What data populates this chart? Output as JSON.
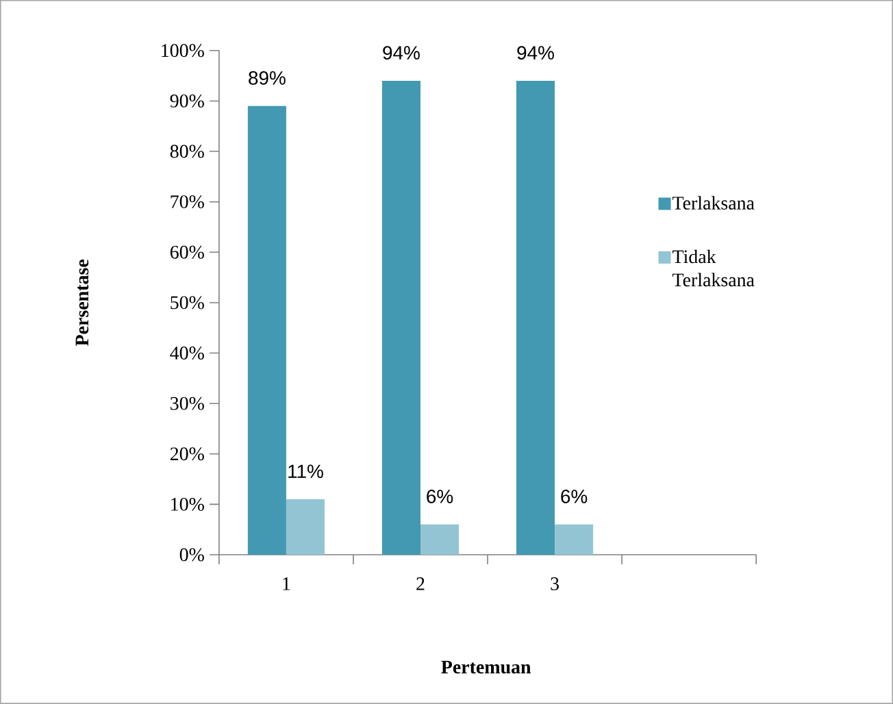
{
  "chart_data": {
    "type": "bar",
    "xlabel": "Pertemuan",
    "ylabel": "Persentase",
    "categories": [
      "1",
      "2",
      "3",
      null
    ],
    "series": [
      {
        "name": "Terlaksana",
        "color": "#4399b1",
        "values": [
          89,
          94,
          94,
          null
        ],
        "value_labels": [
          "89%",
          "94%",
          "94%",
          null
        ]
      },
      {
        "name": "Tidak Terlaksana",
        "color": "#93c4d4",
        "values": [
          11,
          6,
          6,
          null
        ],
        "value_labels": [
          "11%",
          "6%",
          "6%",
          null
        ]
      }
    ],
    "ylim": [
      0,
      100
    ],
    "yticks": [
      {
        "value": 0,
        "label": "0%"
      },
      {
        "value": 10,
        "label": "10%"
      },
      {
        "value": 20,
        "label": "20%"
      },
      {
        "value": 30,
        "label": "30%"
      },
      {
        "value": 40,
        "label": "40%"
      },
      {
        "value": 50,
        "label": "50%"
      },
      {
        "value": 60,
        "label": "60%"
      },
      {
        "value": 70,
        "label": "70%"
      },
      {
        "value": 80,
        "label": "80%"
      },
      {
        "value": 90,
        "label": "90%"
      },
      {
        "value": 100,
        "label": "100%"
      }
    ],
    "legend": "right"
  }
}
